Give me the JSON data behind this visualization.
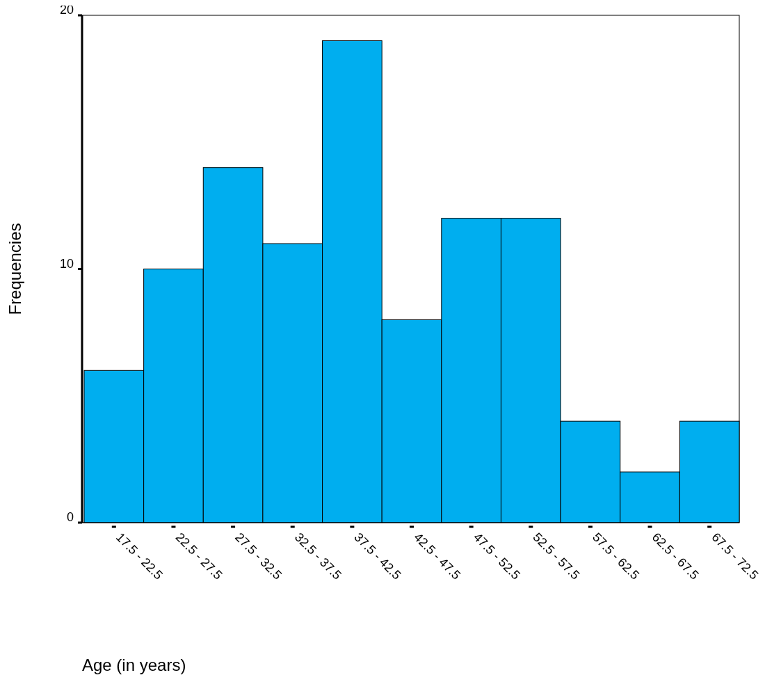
{
  "chart_data": {
    "type": "bar",
    "xlabel": "Age (in years)",
    "ylabel": "Frequencies",
    "categories": [
      "17.5 - 22.5",
      "22.5 - 27.5",
      "27.5 - 32.5",
      "32.5 - 37.5",
      "37.5 - 42.5",
      "42.5 - 47.5",
      "47.5 - 52.5",
      "52.5 - 57.5",
      "57.5 - 62.5",
      "62.5 - 67.5",
      "67.5 - 72.5"
    ],
    "values": [
      6,
      10,
      14,
      11,
      19,
      8,
      12,
      12,
      4,
      2,
      4
    ],
    "color": "#00aeef",
    "ylim": [
      0,
      20
    ],
    "yticks": [
      0,
      10,
      20
    ],
    "grid": false
  }
}
